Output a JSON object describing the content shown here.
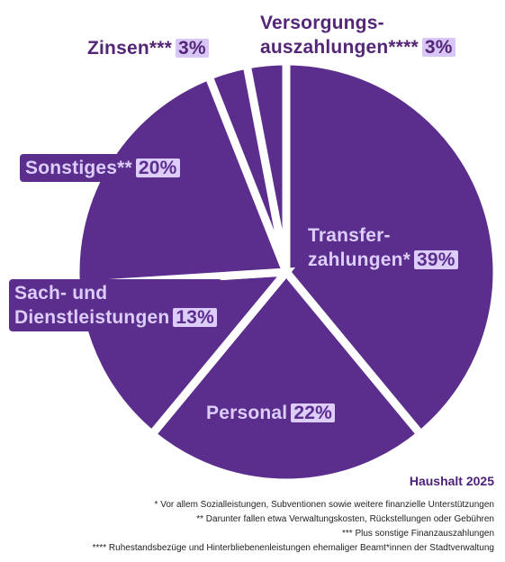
{
  "chart_data": {
    "type": "pie",
    "title": "Haushalt 2025",
    "slices": [
      {
        "label_lines": [
          "Transfer-",
          "zahlungen*"
        ],
        "percent": "39%",
        "value": 39
      },
      {
        "label_lines": [
          "Personal"
        ],
        "percent": "22%",
        "value": 22
      },
      {
        "label_lines": [
          "Sach- und",
          "Dienstleistungen"
        ],
        "percent": "13%",
        "value": 13
      },
      {
        "label_lines": [
          "Sonstiges**"
        ],
        "percent": "20%",
        "value": 20
      },
      {
        "label_lines": [
          "Zinsen***"
        ],
        "percent": "3%",
        "value": 3
      },
      {
        "label_lines": [
          "Versorgungs-",
          "auszahlungen****"
        ],
        "percent": "3%",
        "value": 3
      }
    ],
    "footnotes": [
      "* Vor allem Sozialleistungen, Subventionen sowie weitere finanzielle Unterstützungen",
      "** Darunter fallen etwa Verwaltungskosten, Rückstellungen oder Gebühren",
      "*** Plus sonstige Finanzauszahlungen",
      "**** Ruhestandsbezüge und Hinterbliebenenleistungen ehemaliger Beamt*innen der Stadtverwaltung"
    ],
    "colors": {
      "slice": "#5b2d8c",
      "label_light": "#dccdfb",
      "label_dark": "#532677",
      "gap": "#ffffff"
    }
  }
}
